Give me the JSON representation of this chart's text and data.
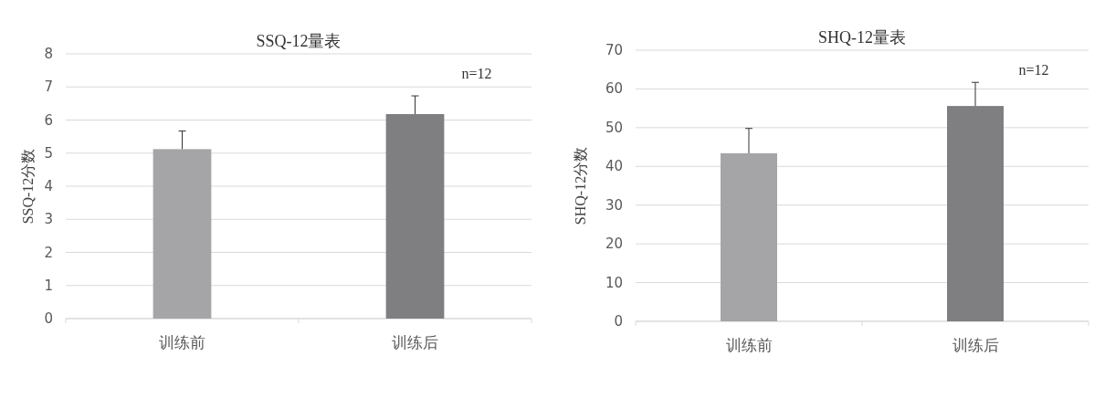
{
  "chart_data": [
    {
      "type": "bar",
      "title": "SSQ-12量表",
      "ylabel": "SSQ-12分数",
      "categories": [
        "训练前",
        "训练后"
      ],
      "colors": [
        "#a5a5a7",
        "#7f7e80"
      ],
      "values": [
        5.12,
        6.18
      ],
      "errors": [
        [
          5.12,
          5.67
        ],
        [
          6.18,
          6.73
        ]
      ],
      "ylim": [
        0,
        8
      ],
      "yticks": [
        0,
        1,
        2,
        3,
        4,
        5,
        6,
        7,
        8
      ],
      "grid": "y",
      "annotations": [
        "n=12"
      ]
    },
    {
      "type": "bar",
      "title": "SHQ-12量表",
      "ylabel": "SHQ-12分数",
      "categories": [
        "训练前",
        "训练后"
      ],
      "colors": [
        "#a5a5a7",
        "#7f7e80"
      ],
      "values": [
        43.4,
        55.6
      ],
      "errors": [
        [
          43.4,
          49.8
        ],
        [
          55.6,
          61.7
        ]
      ],
      "ylim": [
        0,
        70
      ],
      "yticks": [
        0,
        10,
        20,
        30,
        40,
        50,
        60,
        70
      ],
      "grid": "y",
      "annotations": [
        "n=12"
      ]
    }
  ]
}
